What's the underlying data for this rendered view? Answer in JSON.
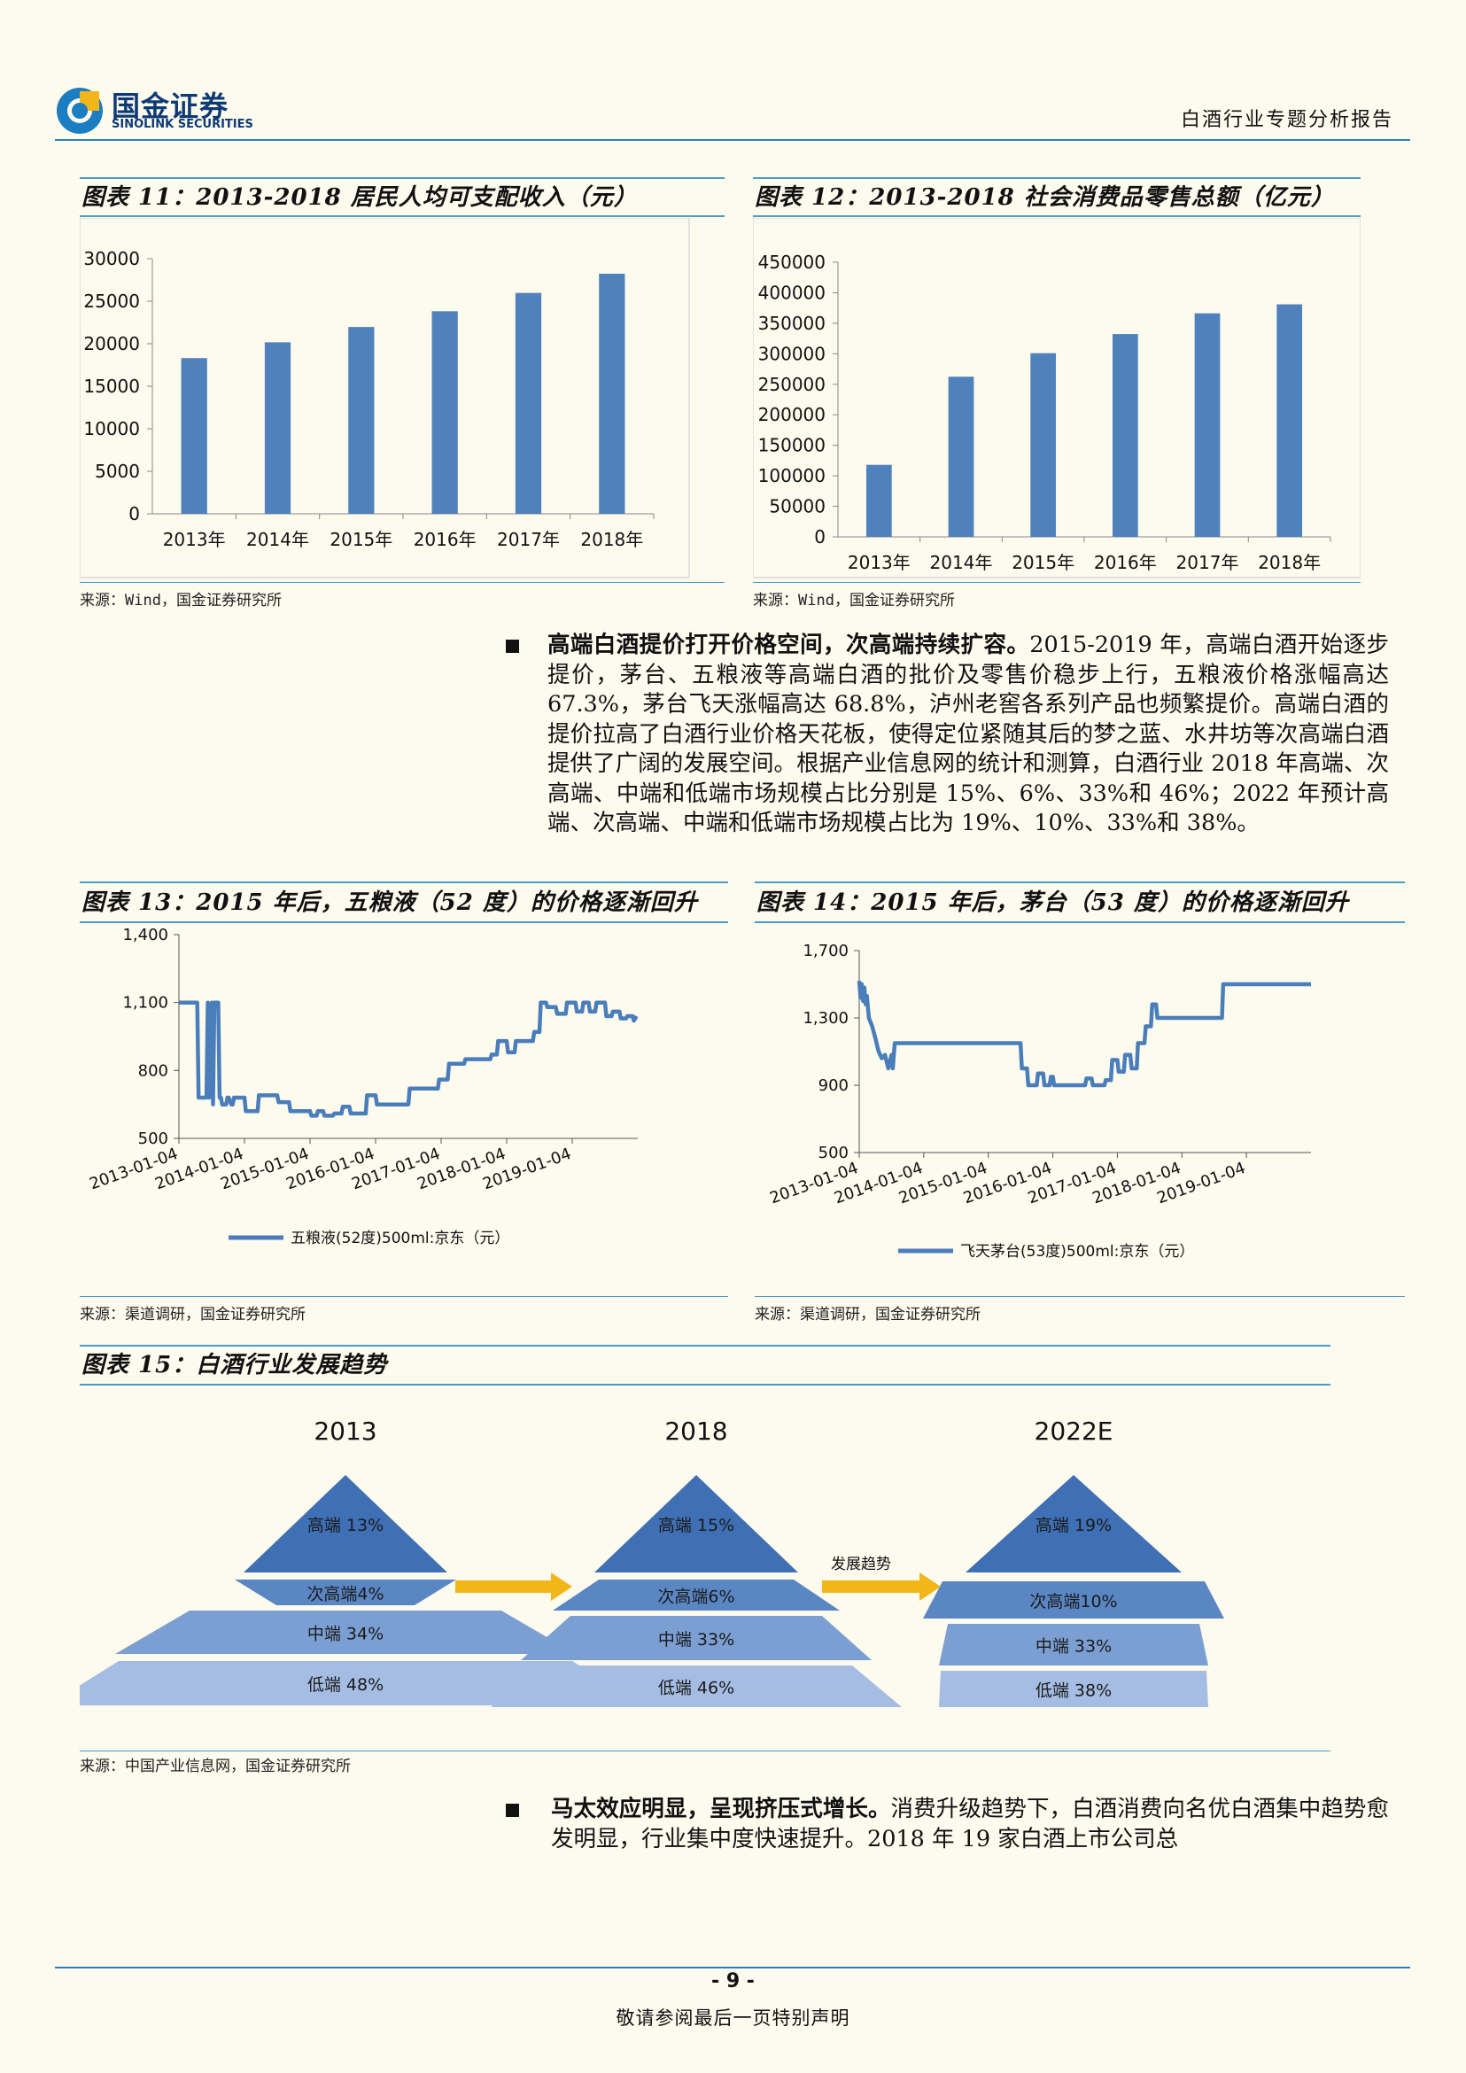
{
  "header": {
    "logo_cn": "国金证券",
    "logo_en": "SINOLINK SECURITIES",
    "report_title": "白酒行业专题分析报告"
  },
  "fig11": {
    "title": "图表 11：2013-2018 居民人均可支配收入（元）",
    "source": "来源：Wind，国金证券研究所",
    "chart_data": {
      "type": "bar",
      "categories": [
        "2013年",
        "2014年",
        "2015年",
        "2016年",
        "2017年",
        "2018年"
      ],
      "values": [
        18311,
        20167,
        21966,
        23821,
        25974,
        28228
      ],
      "ylim": [
        0,
        30000
      ],
      "yticks": [
        0,
        5000,
        10000,
        15000,
        20000,
        25000,
        30000
      ],
      "bar_color": "#4f81bd"
    }
  },
  "fig12": {
    "title": "图表 12：2013-2018 社会消费品零售总额（亿元）",
    "source": "来源：Wind，国金证券研究所",
    "chart_data": {
      "type": "bar",
      "categories": [
        "2013年",
        "2014年",
        "2015年",
        "2016年",
        "2017年",
        "2018年"
      ],
      "values": [
        118000,
        262394,
        300931,
        332316,
        366262,
        380987
      ],
      "ylim": [
        0,
        450000
      ],
      "yticks": [
        0,
        50000,
        100000,
        150000,
        200000,
        250000,
        300000,
        350000,
        400000,
        450000
      ],
      "bar_color": "#4f81bd"
    }
  },
  "para1": {
    "bold": "高端白酒提价打开价格空间，次高端持续扩容。",
    "text": "2015-2019 年，高端白酒开始逐步提价，茅台、五粮液等高端白酒的批价及零售价稳步上行，五粮液价格涨幅高达 67.3%，茅台飞天涨幅高达 68.8%，泸州老窖各系列产品也频繁提价。高端白酒的提价拉高了白酒行业价格天花板，使得定位紧随其后的梦之蓝、水井坊等次高端白酒提供了广阔的发展空间。根据产业信息网的统计和测算，白酒行业 2018 年高端、次高端、中端和低端市场规模占比分别是 15%、6%、33%和 46%；2022 年预计高端、次高端、中端和低端市场规模占比为 19%、10%、33%和 38%。"
  },
  "fig13": {
    "title": "图表 13：2015 年后，五粮液（52 度）的价格逐渐回升",
    "source": "来源：渠道调研，国金证券研究所",
    "chart_data": {
      "type": "line",
      "xticks": [
        "2013-01-04",
        "2014-01-04",
        "2015-01-04",
        "2016-01-04",
        "2017-01-04",
        "2018-01-04",
        "2019-01-04"
      ],
      "ylim": [
        500,
        1400
      ],
      "yticks": [
        "500",
        "800",
        "1,100",
        "1,400"
      ],
      "series": [
        {
          "name": "五粮液(52度)500ml:京东（元）",
          "color": "#4a7ebb",
          "x": [
            2013.0,
            2013.28,
            2013.3,
            2013.42,
            2013.44,
            2013.46,
            2013.5,
            2013.52,
            2013.54,
            2013.6,
            2013.62,
            2013.64,
            2013.66,
            2013.72,
            2013.74,
            2013.76,
            2013.8,
            2013.82,
            2013.84,
            2014.0,
            2014.02,
            2014.2,
            2014.22,
            2014.5,
            2014.52,
            2014.68,
            2014.7,
            2015.0,
            2015.02,
            2015.1,
            2015.12,
            2015.2,
            2015.22,
            2015.35,
            2015.37,
            2015.48,
            2015.5,
            2015.6,
            2015.62,
            2015.7,
            2015.72,
            2015.85,
            2015.87,
            2016.0,
            2016.02,
            2016.3,
            2016.32,
            2016.5,
            2016.52,
            2016.8,
            2016.82,
            2016.95,
            2016.97,
            2017.1,
            2017.12,
            2017.15,
            2017.17,
            2017.35,
            2017.37,
            2017.55,
            2017.57,
            2017.75,
            2017.77,
            2017.85,
            2017.87,
            2018.0,
            2018.02,
            2018.12,
            2018.14,
            2018.2,
            2018.22,
            2018.4,
            2018.42,
            2018.5,
            2018.52,
            2018.6,
            2018.62,
            2018.75,
            2018.77,
            2018.9,
            2018.92,
            2019.05,
            2019.07,
            2019.15,
            2019.17,
            2019.25,
            2019.27,
            2019.35,
            2019.37,
            2019.5,
            2019.52,
            2019.6,
            2019.62,
            2019.72,
            2019.74,
            2019.82,
            2019.84,
            2019.92,
            2019.94,
            2019.98
          ],
          "y": [
            1100,
            1100,
            680,
            680,
            1100,
            680,
            1100,
            650,
            1100,
            1100,
            680,
            680,
            650,
            650,
            680,
            680,
            650,
            650,
            680,
            680,
            620,
            620,
            690,
            690,
            660,
            660,
            620,
            620,
            600,
            600,
            620,
            620,
            600,
            600,
            610,
            610,
            640,
            640,
            610,
            610,
            610,
            610,
            690,
            690,
            650,
            650,
            650,
            650,
            720,
            720,
            720,
            720,
            760,
            760,
            830,
            830,
            830,
            830,
            850,
            850,
            850,
            850,
            870,
            870,
            930,
            930,
            880,
            880,
            930,
            930,
            930,
            930,
            970,
            970,
            1100,
            1100,
            1080,
            1080,
            1050,
            1050,
            1100,
            1100,
            1060,
            1060,
            1100,
            1100,
            1060,
            1060,
            1100,
            1100,
            1040,
            1040,
            1060,
            1060,
            1030,
            1030,
            1040,
            1040,
            1020,
            1040
          ]
        }
      ]
    }
  },
  "fig14": {
    "title": "图表 14：2015 年后，茅台（53 度）的价格逐渐回升",
    "source": "来源：渠道调研，国金证券研究所",
    "chart_data": {
      "type": "line",
      "xticks": [
        "2013-01-04",
        "2014-01-04",
        "2015-01-04",
        "2016-01-04",
        "2017-01-04",
        "2018-01-04",
        "2019-01-04"
      ],
      "ylim": [
        500,
        1700
      ],
      "yticks": [
        "500",
        "900",
        "1,300",
        "1,700"
      ],
      "series": [
        {
          "name": "飞天茅台(53度)500ml:京东（元）",
          "color": "#4a7ebb",
          "x": [
            2013.0,
            2013.02,
            2013.04,
            2013.06,
            2013.08,
            2013.1,
            2013.12,
            2013.15,
            2013.2,
            2013.25,
            2013.3,
            2013.35,
            2013.4,
            2013.45,
            2013.5,
            2013.52,
            2013.55,
            2013.58,
            2013.6,
            2013.65,
            2013.7,
            2013.8,
            2014.0,
            2014.5,
            2015.0,
            2015.5,
            2015.52,
            2015.6,
            2015.62,
            2015.75,
            2015.77,
            2015.85,
            2015.87,
            2015.95,
            2015.97,
            2016.0,
            2016.02,
            2016.2,
            2016.22,
            2016.3,
            2016.32,
            2016.5,
            2016.52,
            2016.6,
            2016.62,
            2016.8,
            2016.82,
            2016.9,
            2016.92,
            2017.0,
            2017.02,
            2017.1,
            2017.12,
            2017.2,
            2017.22,
            2017.3,
            2017.32,
            2017.42,
            2017.44,
            2017.52,
            2017.54,
            2017.6,
            2017.62,
            2017.68,
            2017.7,
            2018.0,
            2018.5,
            2018.62,
            2018.64,
            2019.0,
            2019.5,
            2020.0
          ],
          "y": [
            1520,
            1420,
            1500,
            1400,
            1480,
            1380,
            1430,
            1300,
            1250,
            1180,
            1100,
            1060,
            1080,
            1000,
            1080,
            1000,
            1150,
            1150,
            1150,
            1150,
            1150,
            1150,
            1150,
            1150,
            1150,
            1150,
            1000,
            1000,
            900,
            900,
            970,
            970,
            900,
            900,
            950,
            950,
            900,
            900,
            900,
            900,
            900,
            900,
            940,
            940,
            900,
            900,
            930,
            930,
            1050,
            1050,
            980,
            980,
            1080,
            1080,
            1000,
            1000,
            1150,
            1150,
            1250,
            1250,
            1380,
            1380,
            1300,
            1300,
            1300,
            1300,
            1300,
            1300,
            1500,
            1500,
            1500,
            1500
          ]
        }
      ]
    }
  },
  "fig15": {
    "title": "图表 15：白酒行业发展趋势",
    "source": "来源：中国产业信息网，国金证券研究所",
    "pyramids": [
      {
        "year": "2013",
        "levels": [
          "高端 13%",
          "次高端4%",
          "中端 34%",
          "低端 48%"
        ]
      },
      {
        "year": "2018",
        "levels": [
          "高端 15%",
          "次高端6%",
          "中端 33%",
          "低端 46%"
        ]
      },
      {
        "year": "2022E",
        "levels": [
          "高端 19%",
          "次高端10%",
          "中端 33%",
          "低端 38%"
        ]
      }
    ],
    "trend_label": "发展趋势",
    "arrow_color": "#f2b619"
  },
  "para2": {
    "bold": "马太效应明显，呈现挤压式增长。",
    "text": "消费升级趋势下，白酒消费向名优白酒集中趋势愈发明显，行业集中度快速提升。2018 年 19 家白酒上市公司总"
  },
  "footer": {
    "page_number": "- 9 -",
    "disclaimer": "敬请参阅最后一页特别声明"
  }
}
